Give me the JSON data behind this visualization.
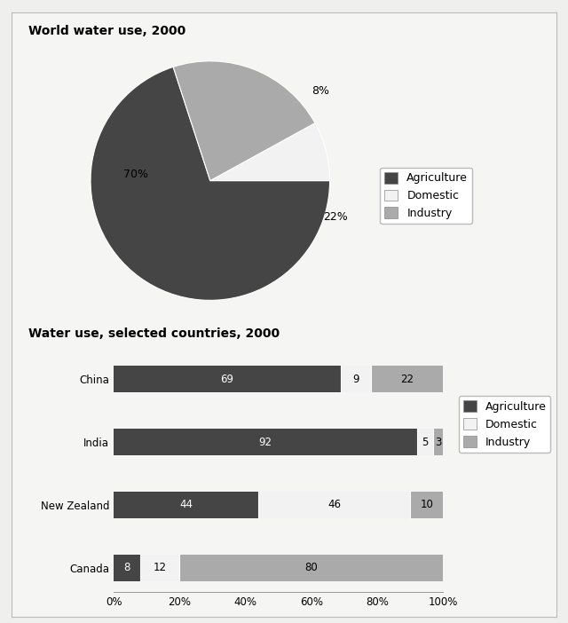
{
  "pie_title": "World water use, 2000",
  "pie_values": [
    70,
    8,
    22
  ],
  "pie_colors": [
    "#454545",
    "#f2f2f2",
    "#aaaaaa"
  ],
  "pie_legend_labels": [
    "Agriculture",
    "Domestic",
    "Industry"
  ],
  "pie_startangle": 108,
  "bar_title": "Water use, selected countries, 2000",
  "bar_countries": [
    "China",
    "India",
    "New Zealand",
    "Canada"
  ],
  "bar_agriculture": [
    69,
    92,
    44,
    8
  ],
  "bar_domestic": [
    9,
    5,
    46,
    12
  ],
  "bar_industry": [
    22,
    3,
    10,
    80
  ],
  "bar_agr_color": "#454545",
  "bar_dom_color": "#f2f2f2",
  "bar_ind_color": "#aaaaaa",
  "bar_legend_labels": [
    "Agriculture",
    "Domestic",
    "Industry"
  ],
  "bar_xlim": [
    0,
    100
  ],
  "bar_xticks": [
    0,
    20,
    40,
    60,
    80,
    100
  ],
  "bar_xticklabels": [
    "0%",
    "20%",
    "40%",
    "60%",
    "80%",
    "100%"
  ],
  "background_color": "#efefed",
  "panel_color": "#f5f5f3",
  "text_color": "#000000",
  "title_fontsize": 10,
  "label_fontsize": 9,
  "tick_fontsize": 8.5,
  "bar_text_fontsize": 8.5,
  "legend_fontsize": 9
}
